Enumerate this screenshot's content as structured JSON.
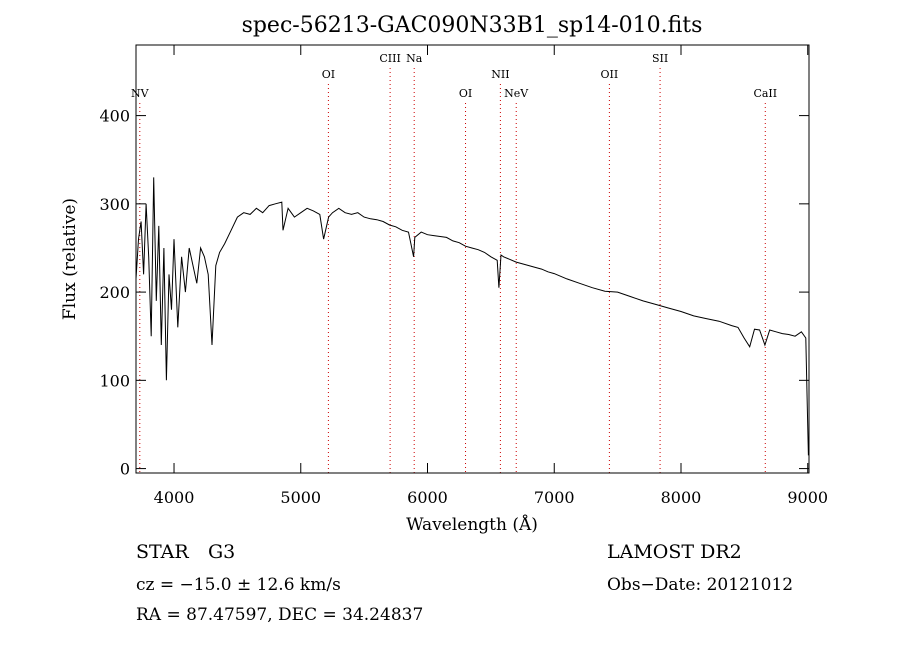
{
  "chart_data": {
    "type": "line",
    "title": "spec-56213-GAC090N33B1_sp14-010.fits",
    "xlabel": "Wavelength (Å)",
    "ylabel": "Flux (relative)",
    "xlim": [
      3700,
      9010
    ],
    "ylim": [
      -5,
      480
    ],
    "x_ticks": [
      {
        "value": 4000,
        "label": "4000"
      },
      {
        "value": 5000,
        "label": "5000"
      },
      {
        "value": 6000,
        "label": "6000"
      },
      {
        "value": 7000,
        "label": "7000"
      },
      {
        "value": 8000,
        "label": "8000"
      },
      {
        "value": 9000,
        "label": "9000"
      }
    ],
    "y_ticks": [
      {
        "value": 0,
        "label": "0"
      },
      {
        "value": 100,
        "label": "100"
      },
      {
        "value": 200,
        "label": "200"
      },
      {
        "value": 300,
        "label": "300"
      },
      {
        "value": 400,
        "label": "400"
      }
    ],
    "grid": false,
    "line_color": "#000000",
    "marker_color": "#cc0000",
    "spectral_lines": [
      {
        "name": "NV",
        "wavelength": 3730,
        "row": 3
      },
      {
        "name": "OI",
        "wavelength": 5218,
        "row": 2
      },
      {
        "name": "CIII",
        "wavelength": 5705,
        "row": 1
      },
      {
        "name": "Na",
        "wavelength": 5895,
        "row": 1
      },
      {
        "name": "OI",
        "wavelength": 6300,
        "row": 3
      },
      {
        "name": "NII",
        "wavelength": 6575,
        "row": 2
      },
      {
        "name": "NeV",
        "wavelength": 6700,
        "row": 3
      },
      {
        "name": "OII",
        "wavelength": 7435,
        "row": 2
      },
      {
        "name": "SII",
        "wavelength": 7835,
        "row": 1
      },
      {
        "name": "CaII",
        "wavelength": 8665,
        "row": 3
      }
    ],
    "series": [
      {
        "x": [
          3700,
          3720,
          3740,
          3760,
          3780,
          3800,
          3820,
          3840,
          3860,
          3880,
          3900,
          3920,
          3940,
          3960,
          3980,
          4000,
          4030,
          4060,
          4090,
          4120,
          4150,
          4180,
          4210,
          4240,
          4270,
          4300,
          4330,
          4360,
          4400,
          4450,
          4500,
          4550,
          4600,
          4650,
          4700,
          4750,
          4800,
          4850,
          4860,
          4900,
          4950,
          5000,
          5050,
          5100,
          5150,
          5180,
          5220,
          5250,
          5300,
          5350,
          5400,
          5450,
          5500,
          5550,
          5600,
          5650,
          5700,
          5750,
          5800,
          5850,
          5890,
          5900,
          5950,
          6000,
          6050,
          6100,
          6150,
          6200,
          6250,
          6300,
          6350,
          6400,
          6450,
          6500,
          6550,
          6563,
          6580,
          6600,
          6650,
          6700,
          6750,
          6800,
          6850,
          6900,
          6950,
          7000,
          7100,
          7200,
          7300,
          7400,
          7500,
          7600,
          7700,
          7800,
          7900,
          8000,
          8100,
          8200,
          8300,
          8400,
          8450,
          8498,
          8542,
          8580,
          8620,
          8662,
          8700,
          8750,
          8800,
          8850,
          8900,
          8950,
          8985,
          8995,
          9005
        ],
        "y": [
          215,
          260,
          280,
          220,
          300,
          240,
          150,
          330,
          190,
          275,
          140,
          250,
          100,
          220,
          180,
          260,
          160,
          240,
          200,
          250,
          230,
          210,
          250,
          240,
          220,
          140,
          230,
          245,
          255,
          270,
          285,
          290,
          288,
          295,
          290,
          298,
          300,
          302,
          270,
          295,
          285,
          290,
          295,
          292,
          288,
          260,
          285,
          290,
          295,
          290,
          288,
          290,
          285,
          283,
          282,
          280,
          276,
          274,
          270,
          268,
          240,
          262,
          268,
          265,
          264,
          263,
          262,
          258,
          256,
          252,
          250,
          248,
          245,
          240,
          236,
          205,
          242,
          240,
          237,
          234,
          232,
          230,
          228,
          226,
          223,
          221,
          215,
          210,
          205,
          201,
          200,
          195,
          190,
          186,
          182,
          178,
          173,
          170,
          167,
          162,
          160,
          148,
          138,
          158,
          157,
          140,
          157,
          155,
          153,
          152,
          150,
          155,
          148,
          80,
          15
        ]
      }
    ]
  },
  "info": {
    "object_class": "STAR",
    "subclass": "G3",
    "survey": "LAMOST DR2",
    "velocity": "cz = −15.0 ± 12.6 km/s",
    "obs_date": "Obs−Date: 20121012",
    "coords": "RA =  87.47597, DEC =  34.24837"
  }
}
